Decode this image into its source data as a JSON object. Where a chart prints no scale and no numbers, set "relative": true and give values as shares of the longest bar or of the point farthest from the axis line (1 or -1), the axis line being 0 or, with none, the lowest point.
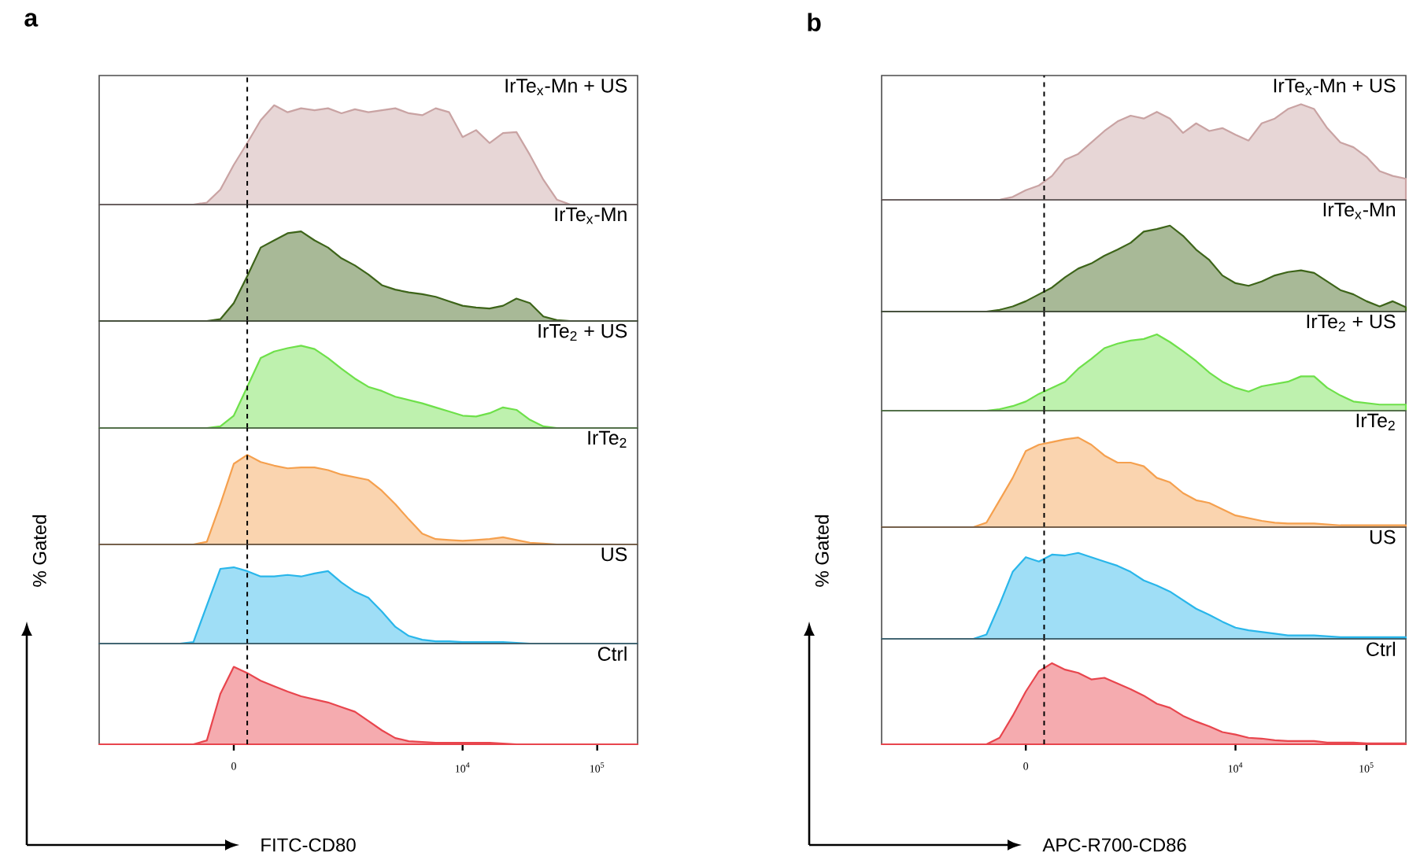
{
  "chart_data": [
    {
      "type": "area",
      "relative": true,
      "title": "a",
      "tick_labels": false,
      "categories": [
        null,
        null,
        null,
        null,
        null,
        null,
        null,
        null,
        null,
        null,
        null,
        null,
        null,
        null,
        null,
        null,
        null,
        null,
        null,
        null,
        null,
        null,
        null,
        null,
        null,
        null,
        null,
        null,
        null,
        null,
        null,
        null,
        null,
        null,
        null,
        null,
        null,
        null,
        null,
        null,
        null
      ],
      "series": [
        {
          "name": "IrTe$_{x}$-Mn + US",
          "color": "#c9a3a3",
          "values": [
            0,
            0,
            0,
            0,
            0,
            0,
            0,
            0,
            0.02,
            0.15,
            0.4,
            0.62,
            0.85,
            1,
            0.93,
            0.97,
            0.95,
            0.97,
            0.92,
            0.96,
            0.93,
            0.95,
            0.97,
            0.92,
            0.9,
            0.97,
            0.93,
            0.68,
            0.75,
            0.62,
            0.72,
            0.73,
            0.5,
            0.25,
            0.05,
            0,
            0,
            0,
            0,
            0,
            0
          ]
        }
      ]
    },
    {
      "type": "area",
      "relative": true,
      "tick_labels": false,
      "categories": [
        null,
        null,
        null,
        null,
        null,
        null,
        null,
        null,
        null,
        null,
        null,
        null,
        null,
        null,
        null,
        null,
        null,
        null,
        null,
        null,
        null,
        null,
        null,
        null,
        null,
        null,
        null,
        null,
        null,
        null,
        null,
        null,
        null,
        null,
        null,
        null,
        null,
        null,
        null,
        null,
        null
      ],
      "series": [
        {
          "name": "IrTe$_{x}$-Mn",
          "color": "#3d6419",
          "values": [
            0,
            0,
            0,
            0,
            0,
            0,
            0,
            0,
            0,
            0.02,
            0.2,
            0.5,
            0.82,
            0.9,
            0.98,
            1,
            0.9,
            0.82,
            0.7,
            0.62,
            0.52,
            0.4,
            0.35,
            0.32,
            0.3,
            0.27,
            0.22,
            0.17,
            0.15,
            0.14,
            0.17,
            0.25,
            0.2,
            0.05,
            0.01,
            0,
            0,
            0,
            0,
            0,
            0
          ]
        }
      ]
    },
    {
      "type": "area",
      "relative": true,
      "tick_labels": false,
      "categories": [
        null,
        null,
        null,
        null,
        null,
        null,
        null,
        null,
        null,
        null,
        null,
        null,
        null,
        null,
        null,
        null,
        null,
        null,
        null,
        null,
        null,
        null,
        null,
        null,
        null,
        null,
        null,
        null,
        null,
        null,
        null,
        null,
        null,
        null,
        null,
        null,
        null,
        null,
        null,
        null,
        null
      ],
      "series": [
        {
          "name": "IrTe$_{2}$ + US",
          "color": "#6ee04a",
          "values": [
            0,
            0,
            0,
            0,
            0,
            0,
            0,
            0,
            0,
            0.02,
            0.15,
            0.5,
            0.85,
            0.93,
            0.97,
            1,
            0.96,
            0.85,
            0.72,
            0.6,
            0.5,
            0.45,
            0.38,
            0.34,
            0.3,
            0.25,
            0.2,
            0.15,
            0.14,
            0.18,
            0.25,
            0.22,
            0.1,
            0.02,
            0,
            0,
            0,
            0,
            0,
            0,
            0
          ]
        }
      ]
    },
    {
      "type": "area",
      "relative": true,
      "tick_labels": false,
      "categories": [
        null,
        null,
        null,
        null,
        null,
        null,
        null,
        null,
        null,
        null,
        null,
        null,
        null,
        null,
        null,
        null,
        null,
        null,
        null,
        null,
        null,
        null,
        null,
        null,
        null,
        null,
        null,
        null,
        null,
        null,
        null,
        null,
        null,
        null,
        null,
        null,
        null,
        null,
        null,
        null,
        null
      ],
      "series": [
        {
          "name": "IrTe$_{2}$",
          "color": "#f5a04e",
          "values": [
            0,
            0,
            0,
            0,
            0,
            0,
            0,
            0,
            0.03,
            0.45,
            0.9,
            1,
            0.92,
            0.88,
            0.85,
            0.86,
            0.86,
            0.83,
            0.78,
            0.75,
            0.72,
            0.6,
            0.45,
            0.28,
            0.12,
            0.06,
            0.05,
            0.04,
            0.05,
            0.06,
            0.08,
            0.05,
            0.02,
            0.01,
            0,
            0,
            0,
            0,
            0,
            0,
            0
          ]
        }
      ]
    },
    {
      "type": "area",
      "relative": true,
      "tick_labels": false,
      "categories": [
        null,
        null,
        null,
        null,
        null,
        null,
        null,
        null,
        null,
        null,
        null,
        null,
        null,
        null,
        null,
        null,
        null,
        null,
        null,
        null,
        null,
        null,
        null,
        null,
        null,
        null,
        null,
        null,
        null,
        null,
        null,
        null,
        null,
        null,
        null,
        null,
        null,
        null,
        null,
        null,
        null
      ],
      "series": [
        {
          "name": "US",
          "color": "#29b6ea",
          "values": [
            0,
            0,
            0,
            0,
            0,
            0,
            0,
            0.02,
            0.5,
            0.98,
            1,
            0.95,
            0.88,
            0.88,
            0.9,
            0.88,
            0.92,
            0.95,
            0.8,
            0.68,
            0.6,
            0.42,
            0.22,
            0.1,
            0.05,
            0.03,
            0.03,
            0.02,
            0.02,
            0.02,
            0.02,
            0.01,
            0,
            0,
            0,
            0,
            0,
            0,
            0,
            0,
            0
          ]
        }
      ]
    },
    {
      "type": "area",
      "relative": true,
      "tick_labels": "x",
      "xlabel": "FITC-CD80",
      "ylabel": "% Gated",
      "categories": [
        null,
        null,
        null,
        null,
        null,
        null,
        null,
        null,
        null,
        null,
        "0",
        null,
        null,
        null,
        null,
        null,
        null,
        null,
        null,
        null,
        null,
        null,
        null,
        null,
        null,
        null,
        null,
        "10$^{4}$",
        null,
        null,
        null,
        null,
        null,
        null,
        null,
        null,
        null,
        "10$^{5}$",
        null,
        null,
        null
      ],
      "series": [
        {
          "name": "Ctrl",
          "color": "#e8454d",
          "values": [
            0,
            0,
            0,
            0,
            0,
            0,
            0,
            0,
            0.05,
            0.65,
            1,
            0.92,
            0.82,
            0.75,
            0.68,
            0.62,
            0.58,
            0.54,
            0.48,
            0.42,
            0.3,
            0.18,
            0.08,
            0.04,
            0.03,
            0.02,
            0.02,
            0.02,
            0.02,
            0.02,
            0.01,
            0,
            0,
            0,
            0,
            0,
            0,
            0,
            0,
            0,
            0
          ]
        }
      ]
    },
    {
      "type": "area",
      "relative": true,
      "title": "b",
      "tick_labels": false,
      "categories": [
        null,
        null,
        null,
        null,
        null,
        null,
        null,
        null,
        null,
        null,
        null,
        null,
        null,
        null,
        null,
        null,
        null,
        null,
        null,
        null,
        null,
        null,
        null,
        null,
        null,
        null,
        null,
        null,
        null,
        null,
        null,
        null,
        null,
        null,
        null,
        null,
        null,
        null,
        null,
        null,
        null
      ],
      "series": [
        {
          "name": "IrTe$_{x}$-Mn + US",
          "color": "#c9a3a3",
          "values": [
            0,
            0,
            0,
            0,
            0,
            0,
            0,
            0,
            0,
            0,
            0.03,
            0.1,
            0.15,
            0.25,
            0.42,
            0.48,
            0.6,
            0.72,
            0.82,
            0.88,
            0.85,
            0.92,
            0.85,
            0.7,
            0.8,
            0.72,
            0.75,
            0.68,
            0.62,
            0.8,
            0.85,
            0.95,
            1,
            0.95,
            0.75,
            0.6,
            0.55,
            0.45,
            0.3,
            0.25,
            0.22
          ]
        }
      ]
    },
    {
      "type": "area",
      "relative": true,
      "tick_labels": false,
      "categories": [
        null,
        null,
        null,
        null,
        null,
        null,
        null,
        null,
        null,
        null,
        null,
        null,
        null,
        null,
        null,
        null,
        null,
        null,
        null,
        null,
        null,
        null,
        null,
        null,
        null,
        null,
        null,
        null,
        null,
        null,
        null,
        null,
        null,
        null,
        null,
        null,
        null,
        null,
        null,
        null,
        null
      ],
      "series": [
        {
          "name": "IrTe$_{x}$-Mn",
          "color": "#3d6419",
          "values": [
            0,
            0,
            0,
            0,
            0,
            0,
            0,
            0,
            0,
            0.02,
            0.06,
            0.12,
            0.2,
            0.28,
            0.4,
            0.5,
            0.56,
            0.65,
            0.72,
            0.8,
            0.93,
            0.96,
            1,
            0.88,
            0.72,
            0.6,
            0.42,
            0.33,
            0.3,
            0.35,
            0.42,
            0.46,
            0.48,
            0.45,
            0.35,
            0.25,
            0.2,
            0.12,
            0.06,
            0.12,
            0.05
          ]
        }
      ]
    },
    {
      "type": "area",
      "relative": true,
      "tick_labels": false,
      "categories": [
        null,
        null,
        null,
        null,
        null,
        null,
        null,
        null,
        null,
        null,
        null,
        null,
        null,
        null,
        null,
        null,
        null,
        null,
        null,
        null,
        null,
        null,
        null,
        null,
        null,
        null,
        null,
        null,
        null,
        null,
        null,
        null,
        null,
        null,
        null,
        null,
        null,
        null,
        null,
        null,
        null
      ],
      "series": [
        {
          "name": "IrTe$_{2}$ + US",
          "color": "#6ee04a",
          "values": [
            0,
            0,
            0,
            0,
            0,
            0,
            0,
            0,
            0,
            0.02,
            0.06,
            0.12,
            0.22,
            0.3,
            0.38,
            0.55,
            0.68,
            0.82,
            0.88,
            0.92,
            0.94,
            1,
            0.9,
            0.78,
            0.65,
            0.5,
            0.38,
            0.3,
            0.25,
            0.32,
            0.35,
            0.38,
            0.45,
            0.45,
            0.3,
            0.2,
            0.12,
            0.1,
            0.08,
            0.08,
            0.08
          ]
        }
      ]
    },
    {
      "type": "area",
      "relative": true,
      "tick_labels": false,
      "categories": [
        null,
        null,
        null,
        null,
        null,
        null,
        null,
        null,
        null,
        null,
        null,
        null,
        null,
        null,
        null,
        null,
        null,
        null,
        null,
        null,
        null,
        null,
        null,
        null,
        null,
        null,
        null,
        null,
        null,
        null,
        null,
        null,
        null,
        null,
        null,
        null,
        null,
        null,
        null,
        null,
        null
      ],
      "series": [
        {
          "name": "IrTe$_{2}$",
          "color": "#f5a04e",
          "values": [
            0,
            0,
            0,
            0,
            0,
            0,
            0,
            0,
            0.05,
            0.3,
            0.55,
            0.85,
            0.92,
            0.95,
            0.98,
            1,
            0.92,
            0.8,
            0.72,
            0.72,
            0.68,
            0.55,
            0.5,
            0.38,
            0.3,
            0.27,
            0.2,
            0.13,
            0.1,
            0.07,
            0.05,
            0.04,
            0.04,
            0.04,
            0.03,
            0.02,
            0.02,
            0.02,
            0.02,
            0.02,
            0.02
          ]
        }
      ]
    },
    {
      "type": "area",
      "relative": true,
      "tick_labels": false,
      "categories": [
        null,
        null,
        null,
        null,
        null,
        null,
        null,
        null,
        null,
        null,
        null,
        null,
        null,
        null,
        null,
        null,
        null,
        null,
        null,
        null,
        null,
        null,
        null,
        null,
        null,
        null,
        null,
        null,
        null,
        null,
        null,
        null,
        null,
        null,
        null,
        null,
        null,
        null,
        null,
        null,
        null
      ],
      "series": [
        {
          "name": "US",
          "color": "#29b6ea",
          "values": [
            0,
            0,
            0,
            0,
            0,
            0,
            0,
            0,
            0.05,
            0.4,
            0.78,
            0.95,
            0.9,
            0.98,
            0.97,
            1,
            0.95,
            0.9,
            0.85,
            0.78,
            0.68,
            0.62,
            0.55,
            0.45,
            0.35,
            0.28,
            0.2,
            0.13,
            0.1,
            0.08,
            0.06,
            0.04,
            0.04,
            0.04,
            0.03,
            0.02,
            0.02,
            0.02,
            0.02,
            0.02,
            0.02
          ]
        }
      ]
    },
    {
      "type": "area",
      "relative": true,
      "tick_labels": "x",
      "xlabel": "APC-R700-CD86",
      "ylabel": "% Gated",
      "categories": [
        null,
        null,
        null,
        null,
        null,
        null,
        null,
        null,
        null,
        null,
        null,
        "0",
        null,
        null,
        null,
        null,
        null,
        null,
        null,
        null,
        null,
        null,
        null,
        null,
        null,
        null,
        null,
        "10$^{4}$",
        null,
        null,
        null,
        null,
        null,
        null,
        null,
        null,
        null,
        "10$^{5}$",
        null,
        null,
        null
      ],
      "series": [
        {
          "name": "Ctrl",
          "color": "#e8454d",
          "values": [
            0,
            0,
            0,
            0,
            0,
            0,
            0,
            0,
            0,
            0.08,
            0.35,
            0.65,
            0.9,
            1,
            0.92,
            0.88,
            0.8,
            0.82,
            0.75,
            0.68,
            0.6,
            0.5,
            0.45,
            0.35,
            0.28,
            0.22,
            0.15,
            0.12,
            0.08,
            0.07,
            0.05,
            0.04,
            0.04,
            0.04,
            0.02,
            0.02,
            0.02,
            0.01,
            0.01,
            0.01,
            0.01
          ]
        }
      ]
    }
  ]
}
